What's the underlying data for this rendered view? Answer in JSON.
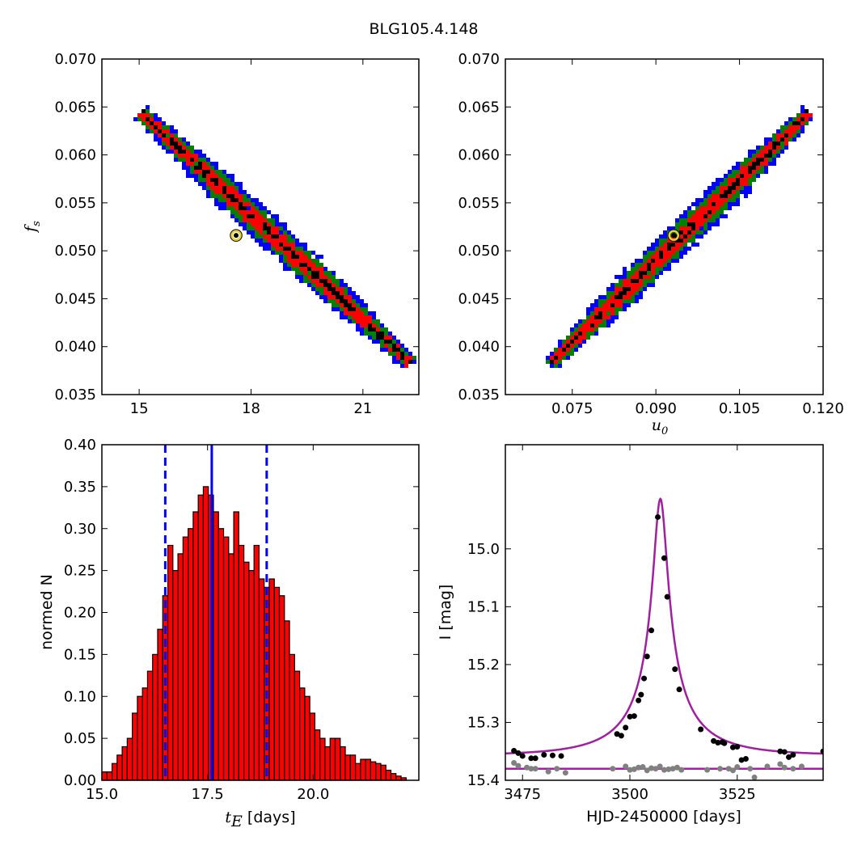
{
  "title": "BLG105.4.148",
  "colors": {
    "level3": "#0000ff",
    "level2": "#008000",
    "level1": "#ff0000",
    "core": "#000000",
    "model_curve": "#a020a0",
    "data_black": "#000000",
    "data_gray": "#808080",
    "best_fit_marker": "#e8d040"
  },
  "chart_data": [
    {
      "id": "fs_vs_tE",
      "type": "heatmap",
      "ylabel_main": "f",
      "ylabel_sub": "s",
      "xlim": [
        14.0,
        22.5
      ],
      "ylim": [
        0.035,
        0.07
      ],
      "xticks": [
        15,
        18,
        21
      ],
      "yticks": [
        "0.035",
        "0.040",
        "0.045",
        "0.050",
        "0.055",
        "0.060",
        "0.065",
        "0.070"
      ],
      "ridge": {
        "x": [
          15.0,
          22.2
        ],
        "y": [
          0.0645,
          0.0385
        ]
      },
      "best_fit": {
        "x": 17.6,
        "y": 0.0516
      }
    },
    {
      "id": "fs_vs_u0",
      "type": "heatmap",
      "xlabel_main": "u",
      "xlabel_sub": "0",
      "xlim": [
        0.063,
        0.12
      ],
      "ylim": [
        0.035,
        0.07
      ],
      "xticks": [
        "0.075",
        "0.090",
        "0.105",
        "0.120"
      ],
      "yticks": [
        "0.035",
        "0.040",
        "0.045",
        "0.050",
        "0.055",
        "0.060",
        "0.065",
        "0.070"
      ],
      "ridge": {
        "x": [
          0.071,
          0.117
        ],
        "y": [
          0.0385,
          0.0645
        ]
      },
      "best_fit": {
        "x": 0.0932,
        "y": 0.0516
      }
    },
    {
      "id": "tE_histogram",
      "type": "bar",
      "xlabel_main": "t",
      "xlabel_sub": "E",
      "xlabel_unit": " [days]",
      "ylabel": "normed N",
      "xlim": [
        15.0,
        22.5
      ],
      "ylim": [
        0.0,
        0.4
      ],
      "xticks": [
        "15.0",
        "17.5",
        "20.0"
      ],
      "yticks": [
        "0.00",
        "0.05",
        "0.10",
        "0.15",
        "0.20",
        "0.25",
        "0.30",
        "0.35",
        "0.40"
      ],
      "bin_start": 15.0,
      "bin_width": 0.12,
      "values": [
        0.01,
        0.01,
        0.02,
        0.03,
        0.04,
        0.05,
        0.08,
        0.1,
        0.11,
        0.13,
        0.15,
        0.18,
        0.22,
        0.28,
        0.25,
        0.27,
        0.29,
        0.3,
        0.32,
        0.34,
        0.35,
        0.34,
        0.32,
        0.3,
        0.29,
        0.27,
        0.32,
        0.28,
        0.26,
        0.25,
        0.28,
        0.24,
        0.23,
        0.24,
        0.23,
        0.22,
        0.19,
        0.15,
        0.13,
        0.11,
        0.1,
        0.08,
        0.06,
        0.05,
        0.04,
        0.05,
        0.05,
        0.04,
        0.03,
        0.03,
        0.02,
        0.025,
        0.025,
        0.022,
        0.02,
        0.018,
        0.012,
        0.008,
        0.005,
        0.003
      ],
      "median": 17.6,
      "bounds": [
        16.5,
        18.9
      ]
    },
    {
      "id": "lightcurve",
      "type": "scatter",
      "xlabel": "HJD-2450000 [days]",
      "ylabel": "I [mag]",
      "xlim": [
        3471,
        3545
      ],
      "ylim_top_to_bottom": [
        14.82,
        15.4
      ],
      "xticks": [
        "3475",
        "3500",
        "3525"
      ],
      "yticks": [
        "15.0",
        "15.1",
        "15.2",
        "15.3",
        "15.4"
      ],
      "model": {
        "t0": 3507.1,
        "tE": 17.6,
        "u0": 0.0932,
        "fs": 0.0516,
        "baseline": 15.3567
      },
      "base_line_mag": 15.38,
      "black_points": {
        "x": [
          3473,
          3474,
          3475,
          3477,
          3478,
          3480,
          3482,
          3484,
          3497,
          3498,
          3499,
          3500,
          3501,
          3502,
          3502.6,
          3503.3,
          3504,
          3505,
          3506.5,
          3508,
          3508.7,
          3510.5,
          3511.5,
          3516.5,
          3519.5,
          3520.5,
          3521.5,
          3522,
          3524,
          3525,
          3526,
          3527,
          3535,
          3536,
          3537,
          3538,
          3545
        ],
        "y": [
          15.349,
          15.353,
          15.358,
          15.362,
          15.362,
          15.356,
          15.357,
          15.358,
          15.32,
          15.323,
          15.309,
          15.29,
          15.289,
          15.262,
          15.252,
          15.224,
          15.186,
          15.141,
          14.945,
          15.016,
          15.083,
          15.208,
          15.243,
          15.312,
          15.332,
          15.335,
          15.334,
          15.336,
          15.343,
          15.342,
          15.365,
          15.363,
          15.35,
          15.351,
          15.36,
          15.356,
          15.35
        ]
      },
      "gray_points": {
        "x": [
          3473,
          3474,
          3476,
          3477,
          3478,
          3481,
          3483,
          3485,
          3496,
          3499,
          3500,
          3501,
          3502,
          3503,
          3504,
          3505,
          3506,
          3507,
          3508,
          3509,
          3510,
          3511,
          3512,
          3518,
          3521,
          3523,
          3524,
          3525,
          3528,
          3529,
          3532,
          3535,
          3536,
          3538,
          3540
        ],
        "y": [
          15.37,
          15.375,
          15.378,
          15.38,
          15.38,
          15.385,
          15.38,
          15.387,
          15.38,
          15.376,
          15.382,
          15.381,
          15.378,
          15.377,
          15.383,
          15.379,
          15.38,
          15.376,
          15.382,
          15.381,
          15.38,
          15.378,
          15.382,
          15.382,
          15.38,
          15.38,
          15.383,
          15.377,
          15.38,
          15.395,
          15.376,
          15.372,
          15.378,
          15.38,
          15.376
        ]
      }
    }
  ]
}
